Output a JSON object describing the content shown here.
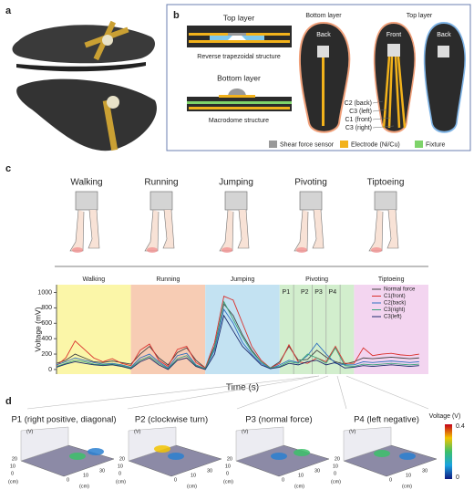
{
  "panel_a": {
    "label": "a"
  },
  "panel_b": {
    "label": "b",
    "top_layer": "Top layer",
    "top_structure": "Reverse trapezoidal structure",
    "bottom_layer": "Bottom layer",
    "bottom_structure": "Macrodome structure",
    "insole_bottom_title": "Bottom layer",
    "insole_top_title": "Top layer",
    "back_label": "Back",
    "front_label": "Front",
    "channels": [
      "C2 (back)",
      "C3 (left)",
      "C1 (front)",
      "C3 (right)"
    ],
    "legend": [
      "Shear force sensor",
      "Electrode (Ni/Cu)",
      "Fixture"
    ]
  },
  "panel_c": {
    "label": "c",
    "activities": [
      "Walking",
      "Running",
      "Jumping",
      "Pivoting",
      "Tiptoeing"
    ]
  },
  "chart_data": {
    "type": "line",
    "ylabel": "Voltage (mV)",
    "xlabel": "Time (s)",
    "ylim": [
      -60,
      1100
    ],
    "yticks": [
      0,
      200,
      400,
      600,
      800,
      1000
    ],
    "xlim": [
      0,
      40
    ],
    "x": [
      0,
      1,
      2,
      3,
      4,
      5,
      6,
      7,
      8,
      9,
      10,
      11,
      12,
      13,
      14,
      15,
      16,
      17,
      18,
      19,
      20,
      21,
      22,
      23,
      24,
      25,
      26,
      27,
      28,
      29,
      30,
      31,
      32,
      33,
      34,
      35,
      36,
      37,
      38,
      39
    ],
    "regions": [
      {
        "name": "Walking",
        "range": [
          0,
          8
        ],
        "color": "#fbf6a8"
      },
      {
        "name": "Running",
        "range": [
          8,
          16
        ],
        "color": "#f7ccb4"
      },
      {
        "name": "Jumping",
        "range": [
          16,
          24
        ],
        "color": "#c3e2f2"
      },
      {
        "name": "Pivoting",
        "range": [
          24,
          32
        ],
        "color": "#d2eecd"
      },
      {
        "name": "Tiptoeing",
        "range": [
          32,
          40
        ],
        "color": "#f3d5f0"
      }
    ],
    "phases": [
      {
        "label": "P1",
        "x": 25.5
      },
      {
        "label": "P2",
        "x": 27.5
      },
      {
        "label": "P3",
        "x": 29
      },
      {
        "label": "P4",
        "x": 30.5
      }
    ],
    "legend": "upper right",
    "series": [
      {
        "name": "Normal force",
        "color": "#444444",
        "values": [
          80,
          120,
          200,
          150,
          100,
          90,
          110,
          90,
          70,
          200,
          300,
          150,
          60,
          220,
          280,
          120,
          20,
          300,
          850,
          700,
          450,
          250,
          100,
          20,
          100,
          300,
          120,
          130,
          250,
          160,
          100,
          70,
          100,
          150,
          140,
          150,
          160,
          150,
          140,
          150
        ]
      },
      {
        "name": "C1(front)",
        "color": "#d9302c",
        "values": [
          50,
          150,
          370,
          260,
          150,
          100,
          140,
          80,
          50,
          250,
          330,
          120,
          40,
          260,
          300,
          90,
          20,
          350,
          950,
          900,
          600,
          300,
          120,
          20,
          80,
          320,
          100,
          80,
          150,
          100,
          300,
          80,
          80,
          280,
          180,
          200,
          210,
          190,
          180,
          200
        ]
      },
      {
        "name": "C2(back)",
        "color": "#2f6fbf",
        "values": [
          60,
          100,
          150,
          120,
          90,
          70,
          80,
          60,
          30,
          150,
          200,
          100,
          20,
          180,
          210,
          60,
          10,
          250,
          780,
          600,
          350,
          200,
          80,
          10,
          60,
          120,
          90,
          180,
          340,
          200,
          80,
          60,
          60,
          100,
          90,
          100,
          110,
          100,
          90,
          100
        ]
      },
      {
        "name": "C3(right)",
        "color": "#3aa37a",
        "values": [
          40,
          80,
          120,
          100,
          70,
          60,
          70,
          50,
          20,
          120,
          170,
          80,
          10,
          140,
          180,
          50,
          10,
          280,
          880,
          650,
          420,
          230,
          100,
          20,
          40,
          100,
          80,
          200,
          150,
          80,
          280,
          50,
          40,
          70,
          60,
          70,
          80,
          70,
          60,
          70
        ]
      },
      {
        "name": "C3(left)",
        "color": "#1c2a6b",
        "values": [
          30,
          70,
          100,
          80,
          60,
          50,
          60,
          40,
          10,
          100,
          150,
          60,
          0,
          120,
          150,
          40,
          0,
          200,
          700,
          500,
          300,
          180,
          60,
          10,
          30,
          80,
          60,
          100,
          120,
          60,
          90,
          20,
          30,
          50,
          40,
          50,
          60,
          50,
          40,
          50
        ]
      }
    ]
  },
  "panel_d": {
    "label": "d",
    "titles": [
      "P1 (right positive, diagonal)",
      "P2 (clockwise turn)",
      "P3 (normal force)",
      "P4 (left negative)"
    ],
    "z_unit": "(V)",
    "xy_unit": "(cm)",
    "y_ticks": [
      "20",
      "10",
      "0"
    ],
    "x_ticks": [
      "0",
      "10",
      "30"
    ],
    "colorbar": {
      "label": "Voltage (V)",
      "ticks": [
        0.4,
        0
      ]
    }
  }
}
